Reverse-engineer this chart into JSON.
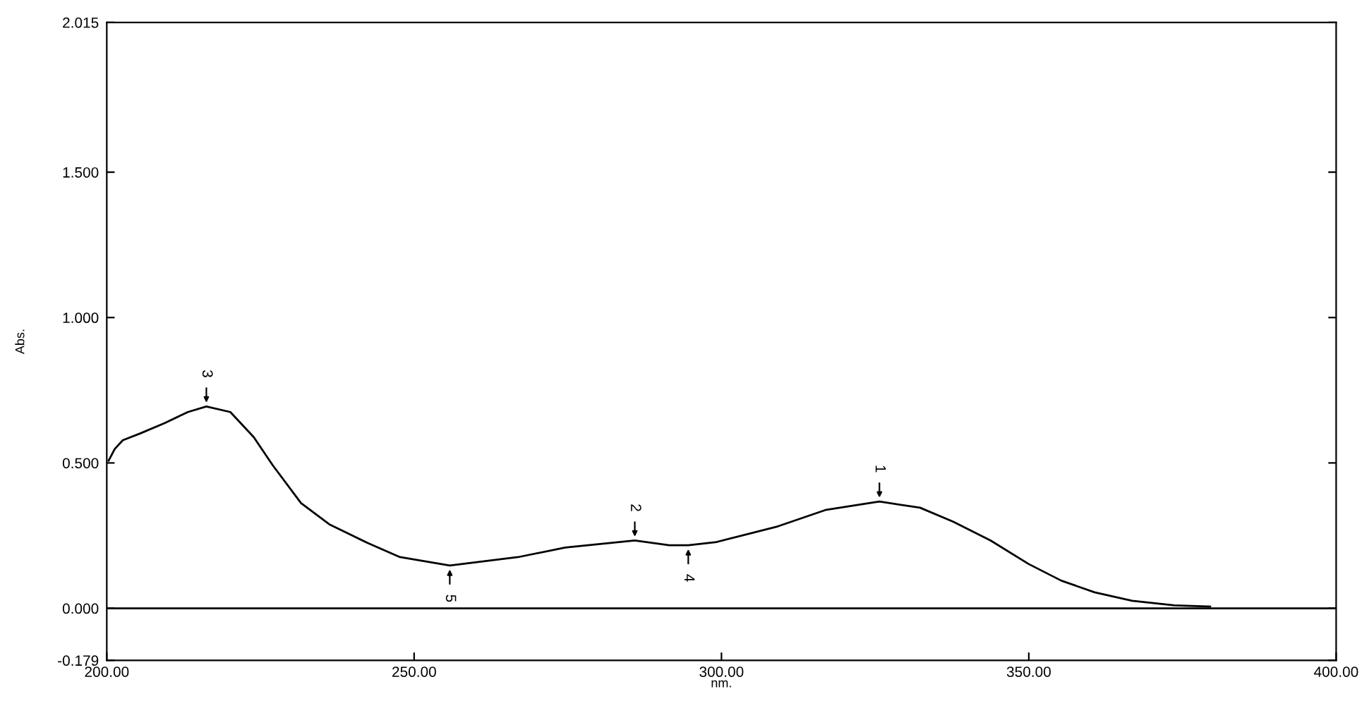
{
  "chart_data": {
    "type": "line",
    "xlabel": "nm.",
    "ylabel": "Abs.",
    "xlim": [
      200,
      400
    ],
    "ylim": [
      -0.179,
      2.015
    ],
    "xticks": [
      {
        "value": 200,
        "label": "200.00"
      },
      {
        "value": 250,
        "label": "250.00"
      },
      {
        "value": 300,
        "label": "300.00"
      },
      {
        "value": 350,
        "label": "350.00"
      },
      {
        "value": 400,
        "label": "400.00"
      }
    ],
    "yticks": [
      {
        "value": -0.179,
        "label": "-0.179"
      },
      {
        "value": 0,
        "label": "0.000"
      },
      {
        "value": 0.5,
        "label": "0.500"
      },
      {
        "value": 1.0,
        "label": "1.000"
      },
      {
        "value": 1.5,
        "label": "1.500"
      },
      {
        "value": 2.015,
        "label": "2.015"
      }
    ],
    "series": [
      {
        "color": "#000000",
        "x": [
          200.3,
          201.3,
          202.6,
          205.5,
          209.4,
          213.2,
          216.2,
          220.1,
          223.9,
          227.0,
          231.6,
          236.2,
          242.4,
          247.7,
          255.8,
          266.9,
          274.6,
          285.9,
          291.5,
          294.6,
          299.2,
          309.2,
          316.9,
          325.7,
          332.3,
          337.7,
          343.8,
          350.0,
          355.3,
          360.7,
          366.8,
          373.7,
          379.5
        ],
        "values": [
          0.508,
          0.548,
          0.578,
          0.602,
          0.637,
          0.675,
          0.694,
          0.675,
          0.589,
          0.492,
          0.362,
          0.289,
          0.225,
          0.176,
          0.147,
          0.176,
          0.209,
          0.233,
          0.217,
          0.217,
          0.228,
          0.282,
          0.338,
          0.367,
          0.346,
          0.298,
          0.233,
          0.152,
          0.095,
          0.055,
          0.026,
          0.01,
          0.006
        ]
      }
    ],
    "ref_lines": [
      {
        "axis": "y",
        "value": 0,
        "color": "#000000"
      }
    ],
    "annotations": [
      {
        "text": "1",
        "x": 325.7,
        "y": 0.367
      },
      {
        "text": "2",
        "x": 285.9,
        "y": 0.233
      },
      {
        "text": "3",
        "x": 216.2,
        "y": 0.694
      },
      {
        "text": "4",
        "x": 294.6,
        "y": 0.217
      },
      {
        "text": "5",
        "x": 255.8,
        "y": 0.147
      }
    ],
    "marker": "none",
    "line_style": "solid",
    "grid": false,
    "legend": false
  }
}
